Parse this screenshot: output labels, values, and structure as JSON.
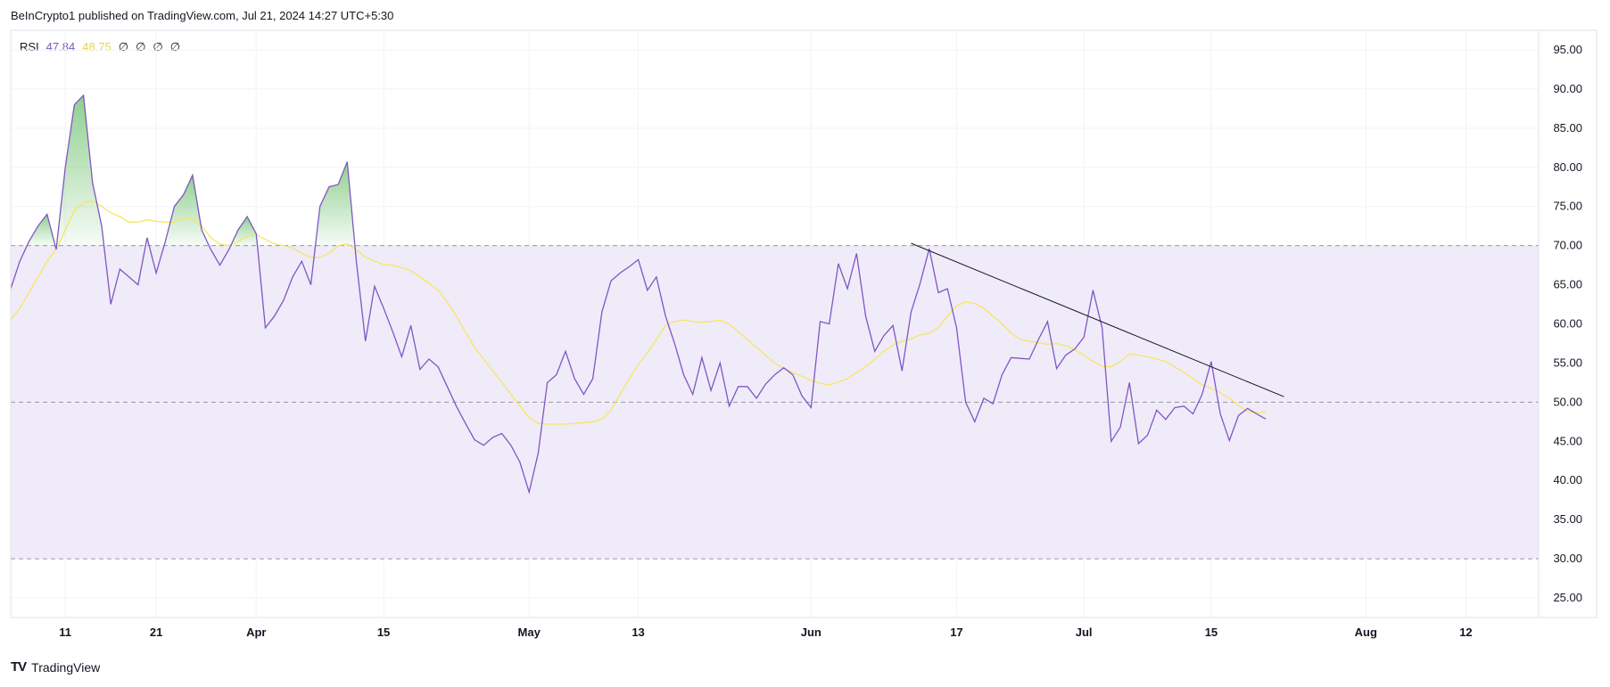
{
  "header": {
    "attribution": "BeInCrypto1 published on TradingView.com, Jul 21, 2024 14:27 UTC+5:30"
  },
  "legend": {
    "name": "RSI",
    "rsi_value": "47.84",
    "ma_value": "48.75",
    "na_values": [
      "∅",
      "∅",
      "∅",
      "∅"
    ]
  },
  "footer": {
    "brand": "TradingView",
    "logo_text": "TV"
  },
  "colors": {
    "rsi": "#7e57c2",
    "ma": "#f5e663",
    "band_fill": "#f0ebf9",
    "overbought_fill": "#8fcf8f",
    "trendline": "#131722",
    "grid": "#f0f3fa",
    "dash": "#9598a1"
  },
  "chart_data": {
    "type": "line",
    "title": "",
    "xlabel": "",
    "ylabel": "",
    "ylim": [
      22.5,
      97.5
    ],
    "yticks": [
      "95.00",
      "90.00",
      "85.00",
      "80.00",
      "75.00",
      "70.00",
      "65.00",
      "60.00",
      "55.00",
      "50.00",
      "45.00",
      "40.00",
      "35.00",
      "30.00",
      "25.00"
    ],
    "ytick_values": [
      95,
      90,
      85,
      80,
      75,
      70,
      65,
      60,
      55,
      50,
      45,
      40,
      35,
      30,
      25
    ],
    "xlim": [
      "2024-03-05",
      "2024-08-20"
    ],
    "x_ticks": [
      {
        "date": "2024-03-11",
        "label": "11"
      },
      {
        "date": "2024-03-21",
        "label": "21"
      },
      {
        "date": "2024-04-01",
        "label": "Apr"
      },
      {
        "date": "2024-04-15",
        "label": "15"
      },
      {
        "date": "2024-05-01",
        "label": "May"
      },
      {
        "date": "2024-05-13",
        "label": "13"
      },
      {
        "date": "2024-06-01",
        "label": "Jun"
      },
      {
        "date": "2024-06-17",
        "label": "17"
      },
      {
        "date": "2024-07-01",
        "label": "Jul"
      },
      {
        "date": "2024-07-15",
        "label": "15"
      },
      {
        "date": "2024-08-01",
        "label": "Aug"
      },
      {
        "date": "2024-08-12",
        "label": "12"
      }
    ],
    "levels": {
      "upper": 70,
      "middle": 50,
      "lower": 30
    },
    "grid": true,
    "series": [
      {
        "name": "RSI",
        "start_date": "2024-03-05",
        "values": [
          64.5,
          68,
          70.5,
          72.5,
          74,
          69.5,
          80,
          88,
          89.2,
          78,
          72.5,
          62.5,
          67,
          66,
          65,
          71,
          66.5,
          70.5,
          75,
          76.5,
          79,
          72,
          69.5,
          67.5,
          69.5,
          72,
          73.7,
          71.5,
          59.5,
          61,
          63,
          66,
          68,
          65,
          75,
          77.5,
          77.8,
          80.7,
          68,
          57.8,
          64.8,
          62,
          59,
          55.8,
          59.8,
          54.2,
          55.5,
          54.5,
          52,
          49.5,
          47.3,
          45.2,
          44.5,
          45.5,
          46,
          44.5,
          42.3,
          38.5,
          43.5,
          52.5,
          53.5,
          56.5,
          53,
          51,
          53,
          61.5,
          65.5,
          66.5,
          67.3,
          68.2,
          64.3,
          66,
          61,
          57.5,
          53.5,
          51,
          55.7,
          51.5,
          55,
          49.5,
          52,
          52,
          50.5,
          52.3,
          53.5,
          54.4,
          53.5,
          50.8,
          49.3,
          60.3,
          60,
          67.7,
          64.5,
          69,
          61,
          56.5,
          58.5,
          59.8,
          54,
          61.5,
          65.2,
          69.6,
          64,
          64.5,
          59.5,
          50,
          47.5,
          50.5,
          49.8,
          53.5,
          55.7,
          55.6,
          55.5,
          58,
          60.3,
          54.3,
          56,
          56.8,
          58.3,
          64.3,
          59.5,
          45,
          46.8,
          52.5,
          44.7,
          45.8,
          49,
          47.8,
          49.3,
          49.5,
          48.5,
          51,
          55.2,
          48.5,
          45.1,
          48.3,
          49.2,
          48.5,
          47.84
        ]
      },
      {
        "name": "RSI-based MA",
        "start_date": "2024-03-05",
        "values": [
          60.5,
          62,
          64,
          66,
          68,
          69.5,
          72,
          74.5,
          75.5,
          75.7,
          75,
          74.2,
          73.7,
          73,
          73,
          73.3,
          73.1,
          73,
          73,
          73.5,
          73.4,
          72.5,
          71,
          70.2,
          70,
          70.5,
          71.2,
          71.4,
          70.8,
          70.2,
          70,
          69.7,
          69,
          68.5,
          68.5,
          69,
          70,
          70.2,
          69.5,
          68.5,
          68,
          67.6,
          67.5,
          67.2,
          66.8,
          66,
          65.2,
          64.3,
          62.8,
          61,
          59,
          57,
          55.5,
          54,
          52.5,
          51,
          49.5,
          48,
          47.3,
          47.2,
          47.2,
          47.2,
          47.3,
          47.4,
          47.5,
          47.8,
          49,
          51,
          53,
          54.8,
          56.3,
          58,
          59.8,
          60.3,
          60.5,
          60.3,
          60.2,
          60.3,
          60.5,
          60,
          59,
          58,
          57,
          56,
          55,
          54.3,
          53.8,
          53.3,
          52.8,
          52.4,
          52.2,
          52.6,
          53,
          53.8,
          54.5,
          55.5,
          56.5,
          57.3,
          57.8,
          58.1,
          58.6,
          58.8,
          59.5,
          61,
          62.3,
          62.8,
          62.6,
          62,
          61,
          60,
          58.8,
          58,
          57.8,
          57.6,
          57.4,
          57.5,
          57.2,
          56.7,
          56,
          55.2,
          54.6,
          54.5,
          55.2,
          56.2,
          56,
          55.8,
          55.5,
          55.2,
          54.5,
          53.8,
          53,
          52.2,
          51.8,
          51.2,
          50.5,
          49.6,
          48.8,
          48.7,
          48.75
        ]
      }
    ],
    "trendline": {
      "start": {
        "date": "2024-06-12",
        "value": 70.3
      },
      "end": {
        "date": "2024-07-23",
        "value": 50.7
      }
    },
    "overbought_shading": "fill between RSI and 70 where RSI > 70",
    "band_shading": "fill between 30 and 70"
  }
}
